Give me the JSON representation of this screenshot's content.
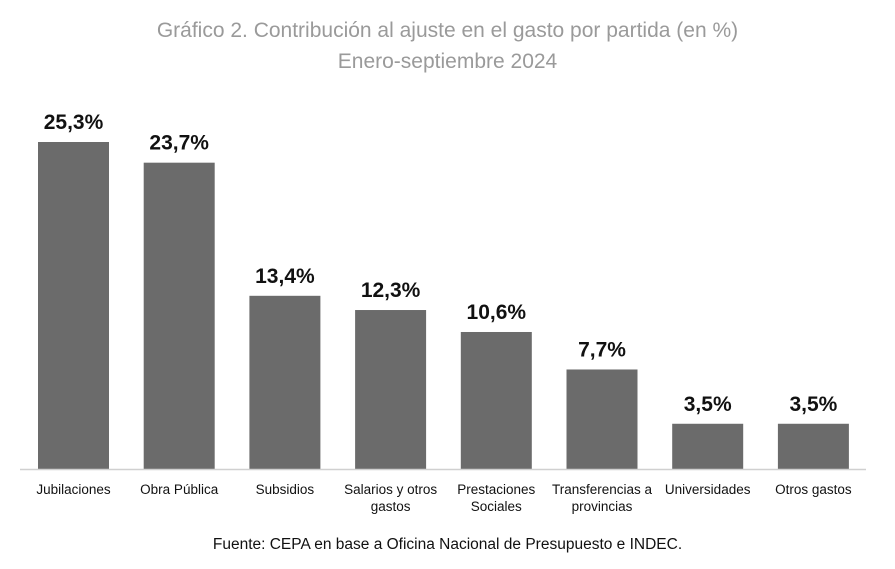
{
  "chart_data": {
    "type": "bar",
    "title": "Gráfico 2. Contribución al ajuste en el gasto por partida (en %)",
    "subtitle": "Enero-septiembre 2024",
    "categories": [
      [
        "Jubilaciones"
      ],
      [
        "Obra Pública"
      ],
      [
        "Subsidios"
      ],
      [
        "Salarios y otros",
        "gastos"
      ],
      [
        "Prestaciones",
        "Sociales"
      ],
      [
        "Transferencias a",
        "provincias"
      ],
      [
        "Universidades"
      ],
      [
        "Otros gastos"
      ]
    ],
    "values": [
      25.3,
      23.7,
      13.4,
      12.3,
      10.6,
      7.7,
      3.5,
      3.5
    ],
    "data_labels": [
      "25,3%",
      "23,7%",
      "13,4%",
      "12,3%",
      "10,6%",
      "7,7%",
      "3,5%",
      "3,5%"
    ],
    "xlabel": "",
    "ylabel": "",
    "ylim": [
      0,
      25.3
    ],
    "grid": false,
    "bar_color": "#6b6b6b",
    "source": "Fuente: CEPA en base a Oficina Nacional de Presupuesto e INDEC."
  }
}
